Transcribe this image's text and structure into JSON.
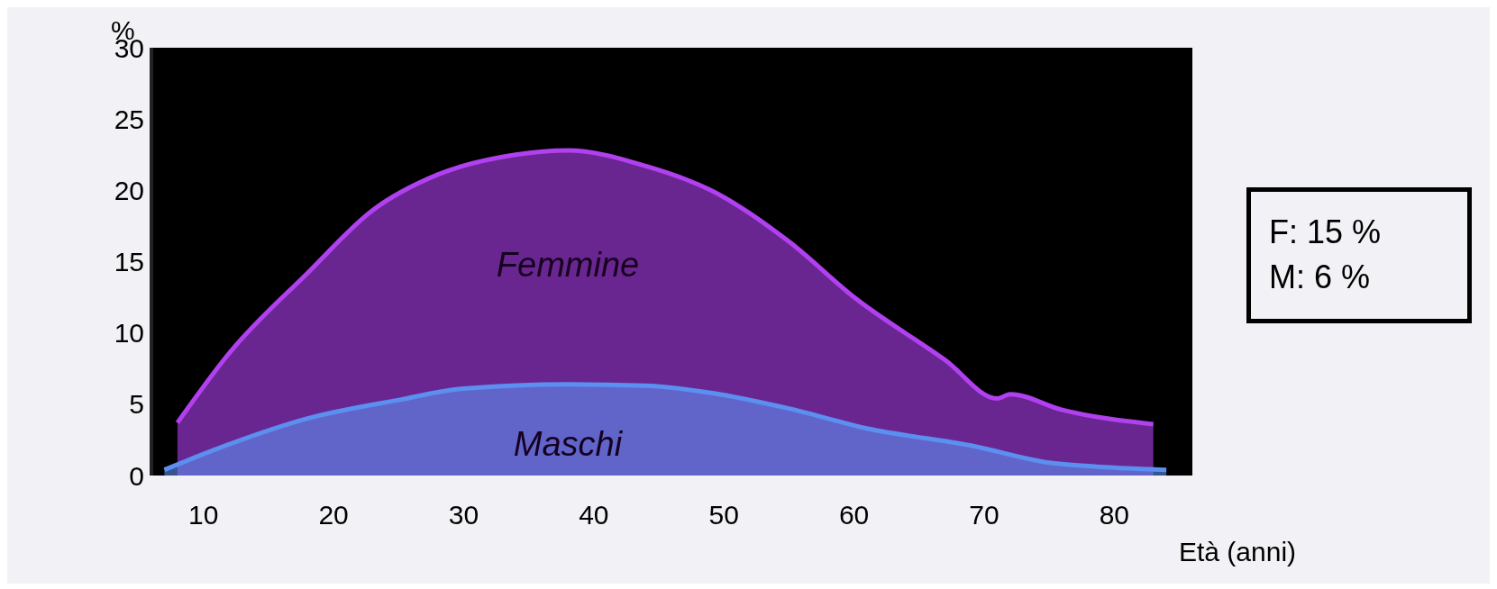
{
  "chart_data": {
    "type": "area",
    "xlabel": "Età  (anni)",
    "ylabel": "%",
    "xlim": [
      6,
      86
    ],
    "xticks": [
      10,
      20,
      30,
      40,
      50,
      60,
      70,
      80
    ],
    "ylim": [
      0,
      30
    ],
    "yticks": [
      0,
      5,
      10,
      15,
      20,
      25,
      30
    ],
    "grid": false,
    "legend": false,
    "series": [
      {
        "name": "Femmine",
        "color": "#b040f0",
        "x": [
          8,
          12,
          18,
          23,
          28,
          34,
          38,
          44,
          49,
          55,
          60,
          67,
          71,
          72,
          76,
          83
        ],
        "values": [
          3.7,
          8.6,
          14.2,
          18.6,
          21.1,
          22.5,
          22.8,
          21.7,
          20,
          16.4,
          12.5,
          8.1,
          5.4,
          5.7,
          4.6,
          3.6
        ]
      },
      {
        "name": "Maschi",
        "color": "#5b8ff0",
        "x": [
          7,
          12,
          18,
          25,
          30,
          38,
          44,
          49,
          55,
          61,
          69,
          75,
          79,
          84
        ],
        "values": [
          0.4,
          2.2,
          4,
          5.3,
          6.1,
          6.4,
          6.3,
          5.8,
          4.7,
          3.3,
          2.1,
          0.9,
          0.6,
          0.4
        ]
      }
    ],
    "annotations": [
      "F:  15 %\nM:  6 %"
    ]
  }
}
